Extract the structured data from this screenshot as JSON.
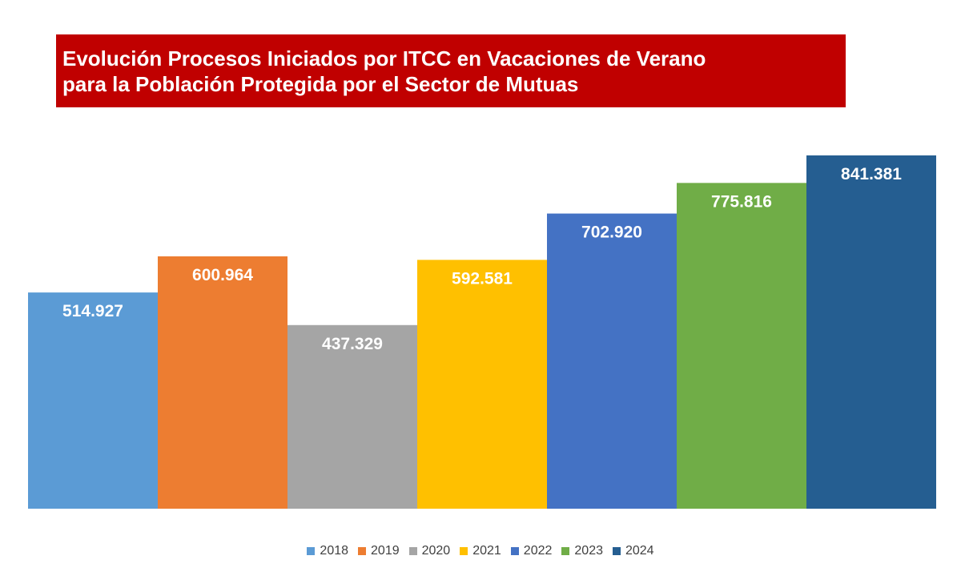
{
  "title_lines": [
    "Evolución Procesos Iniciados por ITCC en Vacaciones de Verano",
    "para la Población Protegida por el Sector de Mutuas"
  ],
  "chart_data": {
    "type": "bar",
    "title": "Evolución Procesos Iniciados por ITCC en Vacaciones de Verano para la Población Protegida por el Sector de Mutuas",
    "xlabel": "",
    "ylabel": "",
    "ylim": [
      0,
      841381
    ],
    "grid": false,
    "legend_position": "bottom",
    "series": [
      {
        "name": "2018",
        "value": 514927,
        "label": "514.927",
        "color": "#5b9bd5"
      },
      {
        "name": "2019",
        "value": 600964,
        "label": "600.964",
        "color": "#ed7d31"
      },
      {
        "name": "2020",
        "value": 437329,
        "label": "437.329",
        "color": "#a5a5a5"
      },
      {
        "name": "2021",
        "value": 592581,
        "label": "592.581",
        "color": "#ffc000"
      },
      {
        "name": "2022",
        "value": 702920,
        "label": "702.920",
        "color": "#4472c4"
      },
      {
        "name": "2023",
        "value": 775816,
        "label": "775.816",
        "color": "#70ad47"
      },
      {
        "name": "2024",
        "value": 841381,
        "label": "841.381",
        "color": "#255e91"
      }
    ]
  }
}
